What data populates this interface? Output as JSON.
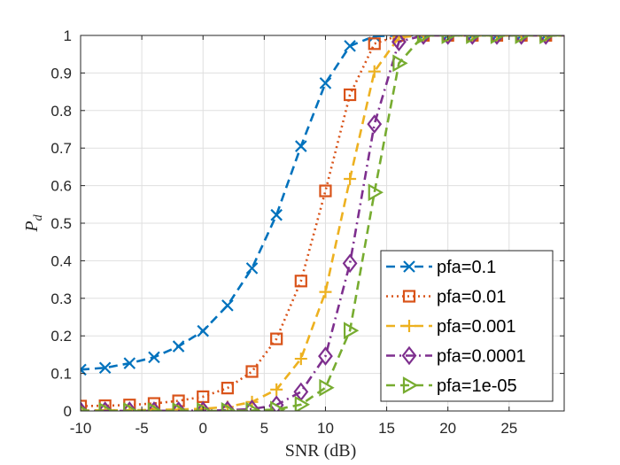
{
  "chart_data": {
    "type": "line",
    "title": "",
    "xlabel": "SNR (dB)",
    "ylabel": "P",
    "ylabel_subscript": "d",
    "xlim": [
      -10,
      29.5
    ],
    "ylim": [
      0,
      1
    ],
    "x_ticks": [
      "-10",
      "-5",
      "0",
      "5",
      "10",
      "15",
      "20",
      "25"
    ],
    "y_ticks": [
      "0",
      "0.1",
      "0.2",
      "0.3",
      "0.4",
      "0.5",
      "0.6",
      "0.7",
      "0.8",
      "0.9",
      "1"
    ],
    "grid": true,
    "legend_position": "bottom-right",
    "x": [
      -10,
      -8,
      -6,
      -4,
      -2,
      0,
      2,
      4,
      6,
      8,
      10,
      12,
      14,
      16,
      18,
      20,
      22,
      24,
      26,
      28,
      30
    ],
    "series": [
      {
        "name": "pfa=0.1",
        "color": "#0072BD",
        "dash": "dashed",
        "marker": "x",
        "values": [
          0.11,
          0.115,
          0.127,
          0.143,
          0.172,
          0.213,
          0.281,
          0.38,
          0.522,
          0.705,
          0.873,
          0.972,
          0.998,
          1,
          1,
          1,
          1,
          1,
          1,
          1,
          1
        ]
      },
      {
        "name": "pfa=0.01",
        "color": "#D95319",
        "dash": "dotted",
        "marker": "square",
        "values": [
          0.013,
          0.014,
          0.016,
          0.02,
          0.027,
          0.038,
          0.061,
          0.105,
          0.192,
          0.346,
          0.586,
          0.842,
          0.978,
          1,
          1,
          1,
          1,
          1,
          1,
          1,
          1
        ]
      },
      {
        "name": "pfa=0.001",
        "color": "#EDB120",
        "dash": "dashed",
        "marker": "plus",
        "values": [
          0.001,
          0.002,
          0.002,
          0.003,
          0.004,
          0.006,
          0.011,
          0.024,
          0.057,
          0.139,
          0.317,
          0.618,
          0.904,
          0.995,
          1,
          1,
          1,
          1,
          1,
          1,
          1
        ]
      },
      {
        "name": "pfa=0.0001",
        "color": "#7E2F8E",
        "dash": "dashdot",
        "marker": "diamond",
        "values": [
          0.0001,
          0.0002,
          0.0002,
          0.0003,
          0.0005,
          0.0008,
          0.002,
          0.005,
          0.016,
          0.051,
          0.146,
          0.393,
          0.764,
          0.983,
          1,
          1,
          1,
          1,
          1,
          1,
          1
        ]
      },
      {
        "name": "pfa=1e-05",
        "color": "#77AC30",
        "dash": "dashed",
        "marker": "triangle-right",
        "values": [
          1e-05,
          2e-05,
          3e-05,
          5e-05,
          8e-05,
          0.0001,
          0.0003,
          0.001,
          0.004,
          0.017,
          0.062,
          0.214,
          0.582,
          0.926,
          1,
          1,
          1,
          1,
          1,
          1,
          1
        ]
      }
    ]
  }
}
